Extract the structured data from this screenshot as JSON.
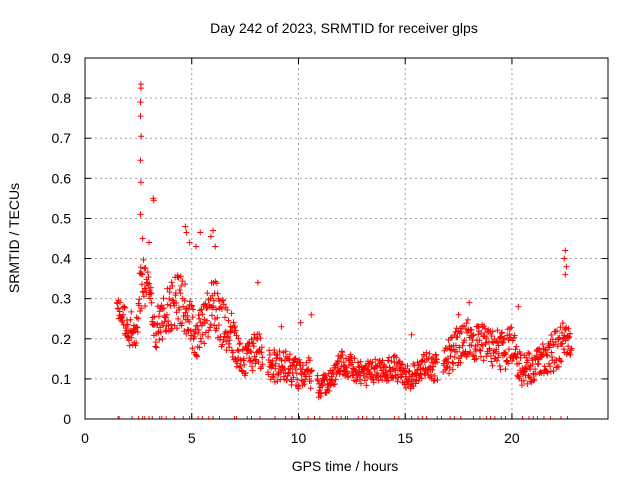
{
  "chart_data": {
    "type": "scatter",
    "title": "Day 242 of 2023, SRMTID for receiver glps",
    "xlabel": "GPS time / hours",
    "ylabel": "SRMTID / TECUs",
    "xlim": [
      0,
      24.5
    ],
    "ylim": [
      0,
      0.9
    ],
    "xticks": [
      "0",
      "5",
      "10",
      "15",
      "20"
    ],
    "yticks": [
      "0",
      "0.1",
      "0.2",
      "0.3",
      "0.4",
      "0.5",
      "0.6",
      "0.7",
      "0.8",
      "0.9"
    ],
    "grid": true,
    "marker": "plus",
    "colors": {
      "series": "#ff0000",
      "grid": "#a0a0a0",
      "axis": "#000000"
    },
    "series": [
      {
        "name": "SRMTID",
        "trend_x": [
          1.5,
          2.0,
          2.4,
          2.6,
          2.8,
          3.0,
          3.3,
          3.6,
          4.0,
          4.5,
          4.8,
          5.2,
          5.6,
          6.0,
          6.4,
          6.8,
          7.2,
          7.6,
          8.0,
          8.5,
          9.0,
          9.5,
          10.0,
          10.5,
          11.0,
          11.5,
          12.0,
          12.5,
          13.0,
          13.5,
          14.0,
          14.5,
          15.0,
          15.5,
          16.0,
          16.5,
          17.0,
          17.5,
          18.0,
          18.5,
          19.0,
          19.5,
          20.0,
          20.5,
          21.0,
          21.5,
          22.0,
          22.5,
          22.8
        ],
        "trend_y": [
          0.28,
          0.24,
          0.2,
          0.35,
          0.34,
          0.32,
          0.22,
          0.25,
          0.28,
          0.3,
          0.26,
          0.2,
          0.24,
          0.3,
          0.24,
          0.22,
          0.16,
          0.15,
          0.18,
          0.14,
          0.13,
          0.13,
          0.11,
          0.12,
          0.07,
          0.1,
          0.14,
          0.13,
          0.11,
          0.12,
          0.12,
          0.13,
          0.1,
          0.11,
          0.14,
          0.12,
          0.16,
          0.18,
          0.2,
          0.19,
          0.18,
          0.17,
          0.18,
          0.12,
          0.13,
          0.15,
          0.17,
          0.19,
          0.2
        ],
        "spread": [
          0.02,
          0.05,
          0.04,
          0.08,
          0.06,
          0.05,
          0.05,
          0.06,
          0.06,
          0.07,
          0.06,
          0.05,
          0.06,
          0.07,
          0.06,
          0.06,
          0.05,
          0.05,
          0.05,
          0.04,
          0.04,
          0.04,
          0.04,
          0.04,
          0.03,
          0.03,
          0.03,
          0.03,
          0.03,
          0.03,
          0.03,
          0.03,
          0.03,
          0.03,
          0.03,
          0.04,
          0.05,
          0.05,
          0.05,
          0.05,
          0.05,
          0.05,
          0.05,
          0.04,
          0.04,
          0.04,
          0.05,
          0.06,
          0.04
        ],
        "peaks": [
          {
            "x": 2.62,
            "y": 0.835
          },
          {
            "x": 2.62,
            "y": 0.825
          },
          {
            "x": 2.6,
            "y": 0.79
          },
          {
            "x": 2.6,
            "y": 0.755
          },
          {
            "x": 2.63,
            "y": 0.705
          },
          {
            "x": 2.6,
            "y": 0.645
          },
          {
            "x": 2.62,
            "y": 0.59
          },
          {
            "x": 2.6,
            "y": 0.51
          },
          {
            "x": 3.2,
            "y": 0.55
          },
          {
            "x": 3.22,
            "y": 0.545
          },
          {
            "x": 2.7,
            "y": 0.45
          },
          {
            "x": 3.0,
            "y": 0.44
          },
          {
            "x": 4.7,
            "y": 0.48
          },
          {
            "x": 4.75,
            "y": 0.465
          },
          {
            "x": 5.4,
            "y": 0.465
          },
          {
            "x": 6.0,
            "y": 0.47
          },
          {
            "x": 5.9,
            "y": 0.455
          },
          {
            "x": 6.1,
            "y": 0.43
          },
          {
            "x": 4.9,
            "y": 0.44
          },
          {
            "x": 5.2,
            "y": 0.43
          },
          {
            "x": 22.5,
            "y": 0.42
          },
          {
            "x": 22.45,
            "y": 0.4
          },
          {
            "x": 22.55,
            "y": 0.38
          },
          {
            "x": 22.5,
            "y": 0.36
          },
          {
            "x": 18.0,
            "y": 0.29
          },
          {
            "x": 20.3,
            "y": 0.28
          },
          {
            "x": 8.1,
            "y": 0.34
          },
          {
            "x": 10.6,
            "y": 0.26
          },
          {
            "x": 10.1,
            "y": 0.24
          },
          {
            "x": 9.2,
            "y": 0.23
          },
          {
            "x": 15.3,
            "y": 0.21
          },
          {
            "x": 17.5,
            "y": 0.26
          }
        ],
        "gaps_x": [
          8.45,
          10.75,
          16.65
        ],
        "zero_markers_x": [
          1.55,
          1.6,
          2.2,
          2.5,
          2.7,
          2.8,
          3.0,
          3.15,
          3.5,
          3.6,
          3.8,
          4.2,
          4.6,
          4.9,
          5.0,
          5.3,
          5.5,
          5.8,
          6.0,
          6.3,
          7.0,
          7.1,
          7.6,
          7.8,
          8.2,
          8.9,
          9.4,
          9.7,
          10.05,
          10.45,
          10.75,
          11.0,
          11.6,
          11.8,
          12.0,
          12.2,
          12.3,
          12.8,
          13.0,
          13.2,
          13.5,
          13.8,
          14.5,
          14.7,
          15.0,
          15.3,
          15.6,
          15.8,
          16.0,
          16.5,
          16.7,
          17.1,
          17.3,
          17.6,
          18.2,
          18.5,
          18.8,
          19.0,
          19.2,
          19.5,
          19.7,
          20.0,
          20.5,
          20.8,
          21.0,
          21.2,
          21.5,
          21.8,
          22.3,
          22.6
        ]
      }
    ]
  }
}
